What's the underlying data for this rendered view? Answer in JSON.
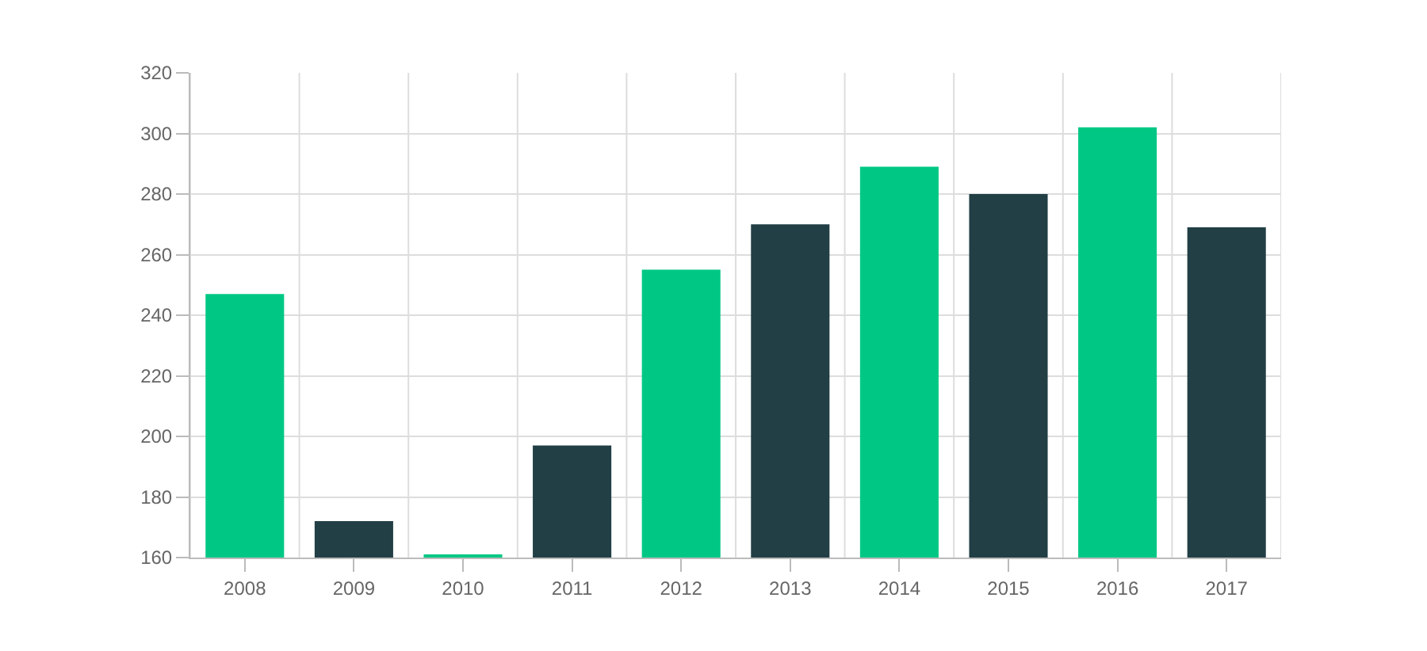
{
  "chart_data": {
    "type": "bar",
    "categories": [
      "2008",
      "2009",
      "2010",
      "2011",
      "2012",
      "2013",
      "2014",
      "2015",
      "2016",
      "2017"
    ],
    "values": [
      247,
      172,
      161,
      197,
      255,
      270,
      289,
      280,
      302,
      269
    ],
    "colors": [
      "#00c884",
      "#213f45",
      "#00c884",
      "#213f45",
      "#00c884",
      "#213f45",
      "#00c884",
      "#213f45",
      "#00c884",
      "#213f45"
    ],
    "ylim": [
      160,
      320
    ],
    "yticks": [
      160,
      180,
      200,
      220,
      240,
      260,
      280,
      300,
      320
    ],
    "grid": true
  }
}
